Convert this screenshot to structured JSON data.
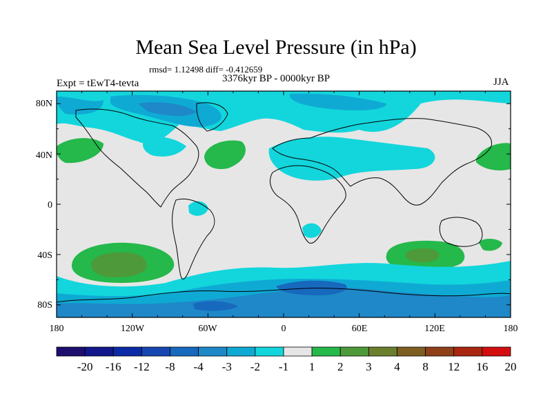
{
  "title": "Mean Sea Level Pressure (in hPa)",
  "stats": "rmsd= 1.12498 diff= -0.412659",
  "period": "3376kyr BP - 0000kyr BP",
  "experiment": "Expt = tEwT4-tevta",
  "season": "JJA",
  "map": {
    "lat_labels": [
      "80N",
      "40N",
      "0",
      "40S",
      "80S"
    ],
    "lon_labels": [
      "180",
      "120W",
      "60W",
      "0",
      "60E",
      "120E",
      "180"
    ],
    "colors": {
      "land_neutral": "#e6e6e6",
      "m1_m2": "#12d6dc",
      "m2_m3": "#0faad4",
      "m3_m4": "#1e88c8",
      "m4_m8": "#1769bd",
      "p1_p2": "#25b84a",
      "p2_p3": "#4e9a3a",
      "p3_p4": "#6b7f2e",
      "coast": "#000000"
    }
  },
  "colorbar": {
    "labels": [
      "-20",
      "-16",
      "-12",
      "-8",
      "-4",
      "-3",
      "-2",
      "-1",
      "1",
      "2",
      "3",
      "4",
      "8",
      "12",
      "16",
      "20"
    ],
    "colors": [
      "#1c0f6e",
      "#12178c",
      "#0c2aa6",
      "#1646b2",
      "#1769bd",
      "#1e88c8",
      "#0faad4",
      "#12d6dc",
      "#e6e6e6",
      "#25b84a",
      "#4e9a3a",
      "#6b7f2e",
      "#7d5f21",
      "#8f4019",
      "#a92710",
      "#d40e0e"
    ]
  }
}
